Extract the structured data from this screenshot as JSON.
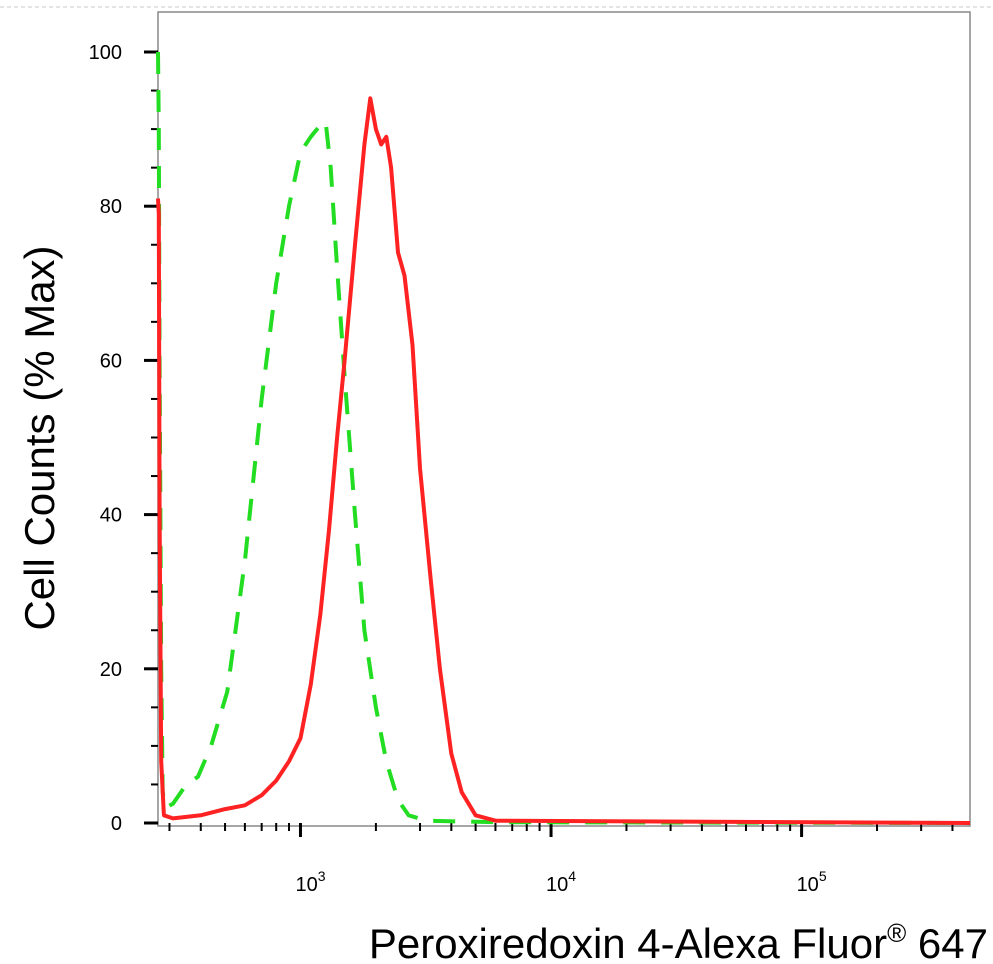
{
  "chart_data": {
    "type": "line",
    "title": "",
    "xlabel": "Peroxiredoxin 4-Alexa Fluor",
    "xlabel_superscript": "®",
    "xlabel_suffix": " 647",
    "ylabel": "Cell Counts (% Max)",
    "x_scale": "log",
    "xlim": [
      270,
      470000
    ],
    "ylim": [
      0,
      100
    ],
    "x_ticks": [
      {
        "value": 1000,
        "base": "10",
        "exp": "3"
      },
      {
        "value": 10000,
        "base": "10",
        "exp": "4"
      },
      {
        "value": 100000,
        "base": "10",
        "exp": "5"
      }
    ],
    "y_ticks": [
      0,
      20,
      40,
      60,
      80,
      100
    ],
    "grid": false,
    "legend": "none",
    "series": [
      {
        "style": "dashed",
        "color": "#22dd22",
        "points": [
          [
            270,
            100
          ],
          [
            272,
            90
          ],
          [
            274,
            60
          ],
          [
            278,
            20
          ],
          [
            282,
            4
          ],
          [
            290,
            2
          ],
          [
            310,
            2.5
          ],
          [
            350,
            5
          ],
          [
            390,
            6
          ],
          [
            440,
            10
          ],
          [
            510,
            17
          ],
          [
            600,
            34
          ],
          [
            700,
            55
          ],
          [
            800,
            70
          ],
          [
            900,
            80
          ],
          [
            1000,
            87
          ],
          [
            1100,
            89
          ],
          [
            1200,
            90.5
          ],
          [
            1260,
            91
          ],
          [
            1320,
            85
          ],
          [
            1400,
            72
          ],
          [
            1500,
            58
          ],
          [
            1650,
            40
          ],
          [
            1800,
            25
          ],
          [
            2000,
            15
          ],
          [
            2200,
            8
          ],
          [
            2450,
            3
          ],
          [
            2700,
            1
          ],
          [
            3200,
            0.3
          ],
          [
            6000,
            0.1
          ],
          [
            470000,
            0
          ]
        ]
      },
      {
        "style": "solid",
        "color": "#ff2222",
        "points": [
          [
            270,
            81
          ],
          [
            272,
            79
          ],
          [
            274,
            40
          ],
          [
            278,
            8
          ],
          [
            285,
            1
          ],
          [
            310,
            0.6
          ],
          [
            400,
            1
          ],
          [
            500,
            1.8
          ],
          [
            600,
            2.3
          ],
          [
            700,
            3.6
          ],
          [
            800,
            5.5
          ],
          [
            900,
            8
          ],
          [
            1000,
            11
          ],
          [
            1100,
            18
          ],
          [
            1200,
            27
          ],
          [
            1300,
            38
          ],
          [
            1400,
            50
          ],
          [
            1500,
            60
          ],
          [
            1650,
            75
          ],
          [
            1800,
            88
          ],
          [
            1900,
            94
          ],
          [
            2000,
            90
          ],
          [
            2100,
            88
          ],
          [
            2200,
            89
          ],
          [
            2300,
            85
          ],
          [
            2450,
            74
          ],
          [
            2600,
            71
          ],
          [
            2800,
            62
          ],
          [
            3000,
            46
          ],
          [
            3300,
            32
          ],
          [
            3600,
            20
          ],
          [
            4000,
            9
          ],
          [
            4400,
            4
          ],
          [
            5000,
            1
          ],
          [
            6000,
            0.3
          ],
          [
            470000,
            0
          ]
        ]
      }
    ]
  }
}
